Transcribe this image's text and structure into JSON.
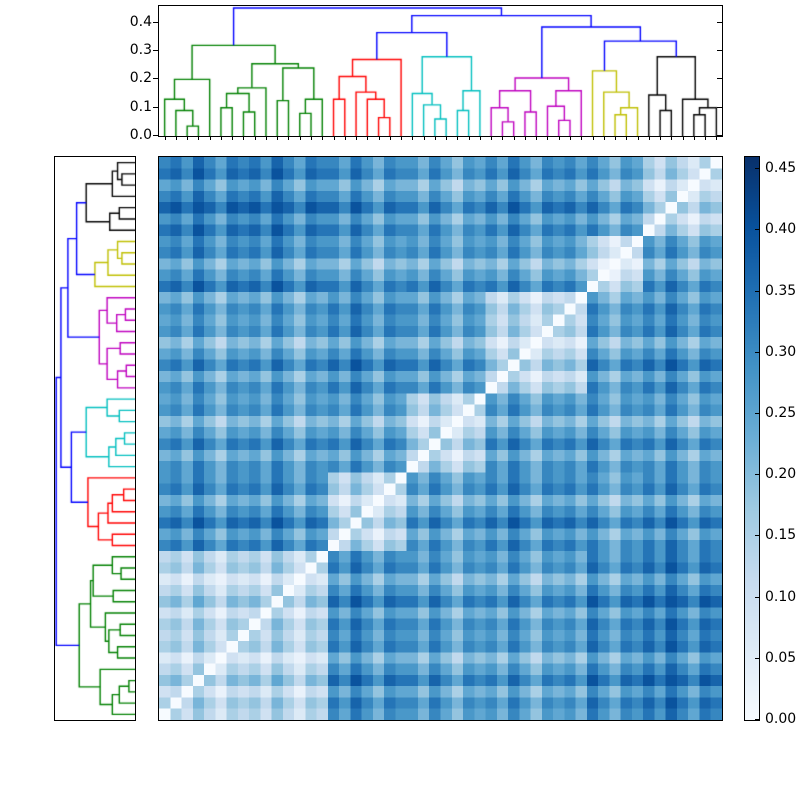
{
  "chart_data": {
    "type": "heatmap",
    "description": "Hierarchically clustered pairwise distance matrix with dendrograms on top and left, Blues colormap, white zero-distance diagonal running bottom-left to top-right",
    "matrix_size": 50,
    "value_range": [
      0.0,
      0.45
    ],
    "colormap": "Blues",
    "cell_encoding": "one hex digit per cell, value = digit/15 * 0.45; rows_hex are in leaf order; displayed rows are reversed (leaf 49 at top) so the zero diagonal runs bottom-left to top-right",
    "rows_hex": [
      "053642545364254a8b97a997a869897a869897b97a9b9ca8ba",
      "504753656475365b9ca8baa8b97a9a8b97a9a8ca8bacadb9cb",
      "34053143425314397a86988697587869758786a8698a8b97a9",
      "675064767586476cadb9cbb9ca8bab9ca8bab9db9cbdbdcadc",
      "453602545364254a8b97a997a869897a869897b97a9b9ca8ba",
      "231420323142132869758775864767586476759758797a8698",
      "564753056475365b9ca8baa8b97a9a8b97a9a8ca8bacadb9cb",
      "453642505364254a8b97a997a869897a869897b97a9b9ca8ba",
      "564753650475365b9ca8baa8b97a9a8b97a9a8ca8bacadb9cb",
      "34253143405314397a86988697587869758786a8698a8b97a9",
      "675864767506476cadb9cbb9ca8bab9ca8bab9db9cbdbdcadc",
      "453642545360254a8b97a997a869897a869897b97a9b9ca8ba",
      "231421323142032869758775864767586476759758797a8698",
      "564753656475305b9ca8baa8b97a9a8b97a9a8ca8bacadb9cb",
      "453642545364250a8b97a997a869897a869897b97a9b9ca8ba",
      "ab9ca8bab9ca8ba0475365a8b97a9b9ca8bab9b97a9b9ca8ba",
      "897a869897a86984053143869758797a8698979758797a8698",
      "bcadb9cbcadb9cb7506476b9ca8bacadb9cbcaca8bacadb9cb",
      "9a8b97a9a8b97a9536025497a8698a8b97a9a8a8698a8b97a9",
      "78697587869758731420327586476869758786864768697587",
      "ab9ca8bab9ca8ba6475305a8b97a9b9ca8bab9b97a9b9ca8ba",
      "9a8b97a9a8b97a9536425097a8698a8b97a9a8a8698a8b97a9",
      "9a8b97a9a8b97a9a8b97a90475365a8b97a9a8b97a9a8b97a9",
      "78697587869758786975874053143869758786975878697587",
      "ab9ca8bab9ca8bab9ca8ba7506476b9ca8bab9ca8bab9ca8ba",
      "897a869897a869897a8698536025497a869897a869897a8698",
      "67586476758647675864763142032758647675864767586476",
      "9a8b97a9a8b97a9a8b97a96475305a8b97a9a8b97a9a8b97a9",
      "897a869897a869897a8698536425097a869897a869897a8698",
      "9a8b97a9a8b97a9b9ca8baa8b97a9047536564b97a9b9ca8ba",
      "78697587869758797a869886975874053143429758797a8698",
      "ab9ca8bab9ca8bacadb9cbb9ca8ba750647675ca8bacadb9cb",
      "897a869897a8698a8b97a997a8698536025453a8698a8b97a9",
      "67586476758647686975877586476314203231864768697587",
      "9a8b97a9a8b97a9b9ca8baa8b97a9647530564b97a9b9ca8ba",
      "897a869897a8698a8b97a997a8698536425053a8698a8b97a9",
      "9a8b97a9a8b97a9b9ca8baa8b97a9647536504b97a9b9ca8ba",
      "78697587869758797a869886975874253143409758797a8698",
      "bcadb9cbcadb9cbb9ca8bab9ca8bab9ca8bab905365b9ca8ba",
      "9a8b97a9a8b97a997a869897a869897a8698975014397a8698",
      "78697587869758775864767586476758647675310217586476",
      "ab9ca8bab9ca8baa8b97a9a8b97a9a8b97a9a864204a8b97a9",
      "9a8b97a9a8b97a997a869897a869897a8698975314097a8698",
      "bcadb9cbcadb9cbb9ca8baa8b97a9b9ca8bab9b97a90475365",
      "9a8b97a9a8b97a997a8698869758797a869897975874053143",
      "cdbdcadcdbdcadccadb9cbb9ca8bacadb9cbcaca8ba7506476",
      "ab9ca8bab9ca8baa8b97a997a8698a8b97a9a8a86985360254",
      "897a869897a869886975877586476869758786864763142032",
      "bcadb9cbcadb9cbb9ca8baa8b97a9b9ca8bab9b97a96475305",
      "ab9ca8bab9ca8baa8b97a997a8698a8b97a9a8a86985364250"
    ],
    "clusters": [
      {
        "name": "green",
        "color": "#008000",
        "leaf_start": 0,
        "leaf_end": 14,
        "size": 15
      },
      {
        "name": "red",
        "color": "#ff0000",
        "leaf_start": 15,
        "leaf_end": 21,
        "size": 7
      },
      {
        "name": "cyan",
        "color": "#00bfbf",
        "leaf_start": 22,
        "leaf_end": 28,
        "size": 7
      },
      {
        "name": "magenta",
        "color": "#bf00bf",
        "leaf_start": 29,
        "leaf_end": 37,
        "size": 9
      },
      {
        "name": "yellow",
        "color": "#bfbf00",
        "leaf_start": 38,
        "leaf_end": 42,
        "size": 5
      },
      {
        "name": "black",
        "color": "#000000",
        "leaf_start": 43,
        "leaf_end": 49,
        "size": 7
      }
    ],
    "dendrogram": {
      "value_max": 0.459,
      "colors": {
        "g": "#008000",
        "r": "#ff0000",
        "c": "#00bfbf",
        "m": "#bf00bf",
        "y": "#bfbf00",
        "k": "#000000",
        "b": "#0000ff"
      },
      "links": [
        [
          2.5,
          0,
          3.5,
          0,
          0.035,
          "g"
        ],
        [
          1.5,
          0,
          3.0,
          0.035,
          0.09,
          "g"
        ],
        [
          0.5,
          0,
          2.25,
          0.09,
          0.13,
          "g"
        ],
        [
          1.375,
          0.13,
          4.5,
          0,
          0.2,
          "g"
        ],
        [
          5.5,
          0,
          6.5,
          0,
          0.1,
          "g"
        ],
        [
          7.5,
          0,
          8.5,
          0,
          0.085,
          "g"
        ],
        [
          6.0,
          0.1,
          8.0,
          0.085,
          0.15,
          "g"
        ],
        [
          7.0,
          0.15,
          9.5,
          0,
          0.17,
          "g"
        ],
        [
          10.5,
          0,
          11.5,
          0,
          0.125,
          "g"
        ],
        [
          12.5,
          0,
          13.5,
          0,
          0.08,
          "g"
        ],
        [
          13.0,
          0.08,
          14.5,
          0,
          0.13,
          "g"
        ],
        [
          11.0,
          0.125,
          13.75,
          0.13,
          0.24,
          "g"
        ],
        [
          8.25,
          0.17,
          12.375,
          0.24,
          0.255,
          "g"
        ],
        [
          2.9375,
          0.2,
          10.3125,
          0.255,
          0.32,
          "g"
        ],
        [
          15.5,
          0,
          16.5,
          0,
          0.13,
          "r"
        ],
        [
          19.5,
          0,
          20.5,
          0,
          0.065,
          "r"
        ],
        [
          18.5,
          0,
          20.0,
          0.065,
          0.13,
          "r"
        ],
        [
          17.5,
          0,
          19.25,
          0.13,
          0.155,
          "r"
        ],
        [
          16.0,
          0.13,
          18.375,
          0.155,
          0.21,
          "r"
        ],
        [
          17.1875,
          0.21,
          21.5,
          0,
          0.27,
          "r"
        ],
        [
          24.5,
          0,
          25.5,
          0,
          0.06,
          "c"
        ],
        [
          23.5,
          0,
          25.0,
          0.06,
          0.11,
          "c"
        ],
        [
          22.5,
          0,
          24.25,
          0.11,
          0.15,
          "c"
        ],
        [
          26.5,
          0,
          27.5,
          0,
          0.09,
          "c"
        ],
        [
          27.0,
          0.09,
          28.5,
          0,
          0.16,
          "c"
        ],
        [
          23.375,
          0.15,
          27.75,
          0.16,
          0.28,
          "c"
        ],
        [
          30.5,
          0,
          31.5,
          0,
          0.05,
          "m"
        ],
        [
          29.5,
          0,
          31.0,
          0.05,
          0.1,
          "m"
        ],
        [
          32.5,
          0,
          33.5,
          0,
          0.085,
          "m"
        ],
        [
          30.25,
          0.1,
          33.0,
          0.085,
          0.16,
          "m"
        ],
        [
          35.5,
          0,
          36.5,
          0,
          0.055,
          "m"
        ],
        [
          34.5,
          0,
          36.0,
          0.055,
          0.105,
          "m"
        ],
        [
          35.25,
          0.105,
          37.5,
          0,
          0.16,
          "m"
        ],
        [
          31.625,
          0.16,
          36.375,
          0.16,
          0.205,
          "m"
        ],
        [
          40.5,
          0,
          41.5,
          0,
          0.075,
          "y"
        ],
        [
          41.0,
          0.075,
          42.5,
          0,
          0.1,
          "y"
        ],
        [
          39.5,
          0,
          41.75,
          0.1,
          0.155,
          "y"
        ],
        [
          38.5,
          0,
          40.625,
          0.155,
          0.23,
          "y"
        ],
        [
          44.5,
          0,
          45.5,
          0,
          0.09,
          "k"
        ],
        [
          43.5,
          0,
          45.0,
          0.09,
          0.145,
          "k"
        ],
        [
          47.5,
          0,
          48.5,
          0,
          0.075,
          "k"
        ],
        [
          48.0,
          0.075,
          49.5,
          0,
          0.1,
          "k"
        ],
        [
          46.5,
          0,
          48.75,
          0.1,
          0.13,
          "k"
        ],
        [
          44.25,
          0.145,
          47.625,
          0.13,
          0.28,
          "k"
        ],
        [
          19.34375,
          0.27,
          25.5625,
          0.28,
          0.365,
          "b"
        ],
        [
          39.5625,
          0.23,
          45.9375,
          0.28,
          0.335,
          "b"
        ],
        [
          34.0,
          0.205,
          42.75,
          0.335,
          0.385,
          "b"
        ],
        [
          22.453125,
          0.365,
          38.375,
          0.385,
          0.425,
          "b"
        ],
        [
          6.625,
          0.32,
          30.4140625,
          0.425,
          0.452,
          "b"
        ]
      ]
    },
    "top_axis": {
      "values": [
        0.0,
        0.1,
        0.2,
        0.3,
        0.4
      ],
      "labels": [
        "0.0",
        "0.1",
        "0.2",
        "0.3",
        "0.4"
      ]
    },
    "colorbar": {
      "max": 0.46,
      "values": [
        0.0,
        0.05,
        0.1,
        0.15,
        0.2,
        0.25,
        0.3,
        0.35,
        0.4,
        0.45
      ],
      "labels": [
        "0.00",
        "0.05",
        "0.10",
        "0.15",
        "0.20",
        "0.25",
        "0.30",
        "0.35",
        "0.40",
        "0.45"
      ],
      "gradient_stops": [
        [
          0.0,
          "#f7fbff"
        ],
        [
          0.125,
          "#deebf7"
        ],
        [
          0.25,
          "#c6dbef"
        ],
        [
          0.375,
          "#9ecae1"
        ],
        [
          0.5,
          "#6baed6"
        ],
        [
          0.625,
          "#4292c6"
        ],
        [
          0.75,
          "#2171b5"
        ],
        [
          0.875,
          "#08519c"
        ],
        [
          1.0,
          "#08306b"
        ]
      ]
    }
  }
}
